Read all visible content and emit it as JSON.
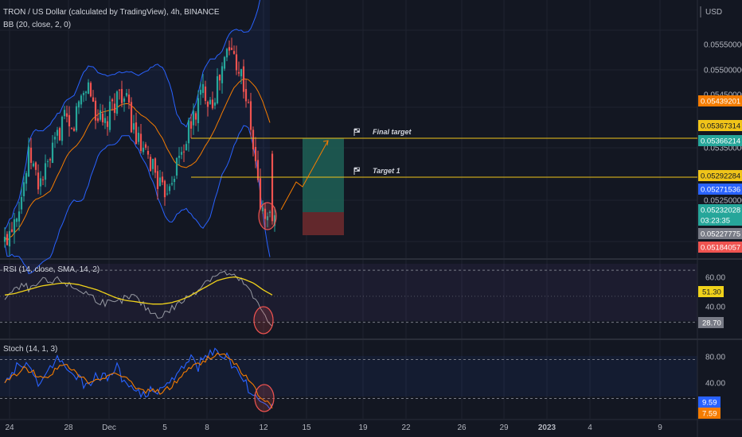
{
  "header": {
    "symbol_line": "TRON / US Dollar (calculated by TradingView), 4h, BINANCE",
    "bb_line": "BB (20, close, 2, 0)",
    "rsi_line": "RSI (14, close, SMA, 14, 2)",
    "stoch_line": "Stoch (14, 1, 3)"
  },
  "currency": "USD",
  "colors": {
    "background": "#131722",
    "up": "#26a69a",
    "down": "#ef5350",
    "bb_band": "#2962ff",
    "bb_basis": "#f57c00",
    "target_line": "#f0c419",
    "rsi_line": "#9598a1",
    "rsi_ma": "#f0d21a",
    "stoch_k": "#2962ff",
    "stoch_d": "#f57c00",
    "profit_zone": "#1e5c53",
    "loss_zone": "#6b2a2e"
  },
  "annotations": {
    "final_target_label": "Final target",
    "target1_label": "Target 1"
  },
  "chart_data": [
    {
      "type": "candlestick",
      "title": "TRON / US Dollar (calculated by TradingView), 4h, BINANCE",
      "interval": "4h",
      "ylim": [
        0.0517,
        0.056
      ],
      "y_ticks": [
        "0.05550000",
        "0.05500000",
        "0.05450000",
        "0.05350000",
        "0.05250000"
      ],
      "x_ticks": [
        "24",
        "28",
        "Dec",
        "5",
        "8",
        "12",
        "15",
        "19",
        "22",
        "26",
        "29",
        "2023",
        "4",
        "9"
      ],
      "indicators": [
        "Bollinger Bands (20, close, 2, 0)"
      ],
      "price_tags": [
        {
          "value": "0.05439201",
          "color": "#f57c00"
        },
        {
          "value": "0.05367314",
          "color": "#f0c419"
        },
        {
          "value": "0.05366214",
          "color": "#26a69a"
        },
        {
          "value": "0.05292284",
          "color": "#f0c419"
        },
        {
          "value": "0.05271536",
          "color": "#2962ff"
        },
        {
          "value": "0.05232028",
          "color": "#26a69a"
        },
        {
          "value": "03:23:35",
          "color": "#26a69a"
        },
        {
          "value": "0.05227775",
          "color": "#787b86"
        },
        {
          "value": "0.05184057",
          "color": "#ef5350"
        }
      ],
      "levels": {
        "final_target": 0.05367,
        "target_1": 0.05292,
        "entry": 0.05232,
        "stop": 0.05195
      },
      "close_trajectory": [
        0.0519,
        0.0523,
        0.0527,
        0.0534,
        0.0529,
        0.0531,
        0.0535,
        0.054,
        0.0537,
        0.0543,
        0.0546,
        0.0541,
        0.0538,
        0.0542,
        0.0545,
        0.0541,
        0.0536,
        0.0533,
        0.0532,
        0.0527,
        0.053,
        0.0533,
        0.0537,
        0.0541,
        0.0545,
        0.0543,
        0.0547,
        0.0552,
        0.055,
        0.0545,
        0.0535,
        0.0524,
        0.0523
      ]
    },
    {
      "type": "line",
      "title": "RSI (14, close, SMA, 14, 2)",
      "ylim": [
        20,
        75
      ],
      "y_ticks": [
        "60.00",
        "40.00"
      ],
      "levels": [
        70,
        30
      ],
      "current_values": [
        "51.30",
        "28.70"
      ],
      "rsi_trajectory": [
        49,
        54,
        58,
        55,
        62,
        60,
        63,
        58,
        55,
        52,
        47,
        45,
        44,
        48,
        50,
        43,
        37,
        35,
        40,
        45,
        50,
        56,
        63,
        67,
        68,
        64,
        60,
        48,
        38,
        28
      ],
      "ma_trajectory": [
        51,
        52,
        54,
        56,
        58,
        59,
        60,
        60,
        59,
        57,
        55,
        52,
        49,
        47,
        46,
        45,
        44,
        44,
        45,
        47,
        50,
        54,
        58,
        62,
        64,
        65,
        63,
        60,
        55,
        51
      ]
    },
    {
      "type": "line",
      "title": "Stoch (14, 1, 3)",
      "ylim": [
        -5,
        105
      ],
      "y_ticks": [
        "80.00",
        "40.00"
      ],
      "levels": [
        80,
        20
      ],
      "current_values": [
        "9.59",
        "7.59"
      ],
      "k_trajectory": [
        40,
        62,
        78,
        55,
        42,
        68,
        85,
        60,
        48,
        35,
        58,
        50,
        72,
        45,
        30,
        22,
        38,
        28,
        44,
        62,
        80,
        70,
        88,
        92,
        84,
        66,
        45,
        25,
        12,
        9
      ],
      "d_trajectory": [
        45,
        55,
        66,
        62,
        50,
        58,
        72,
        68,
        56,
        44,
        50,
        52,
        62,
        54,
        40,
        30,
        32,
        30,
        38,
        52,
        68,
        72,
        82,
        88,
        86,
        74,
        56,
        36,
        18,
        8
      ]
    }
  ]
}
